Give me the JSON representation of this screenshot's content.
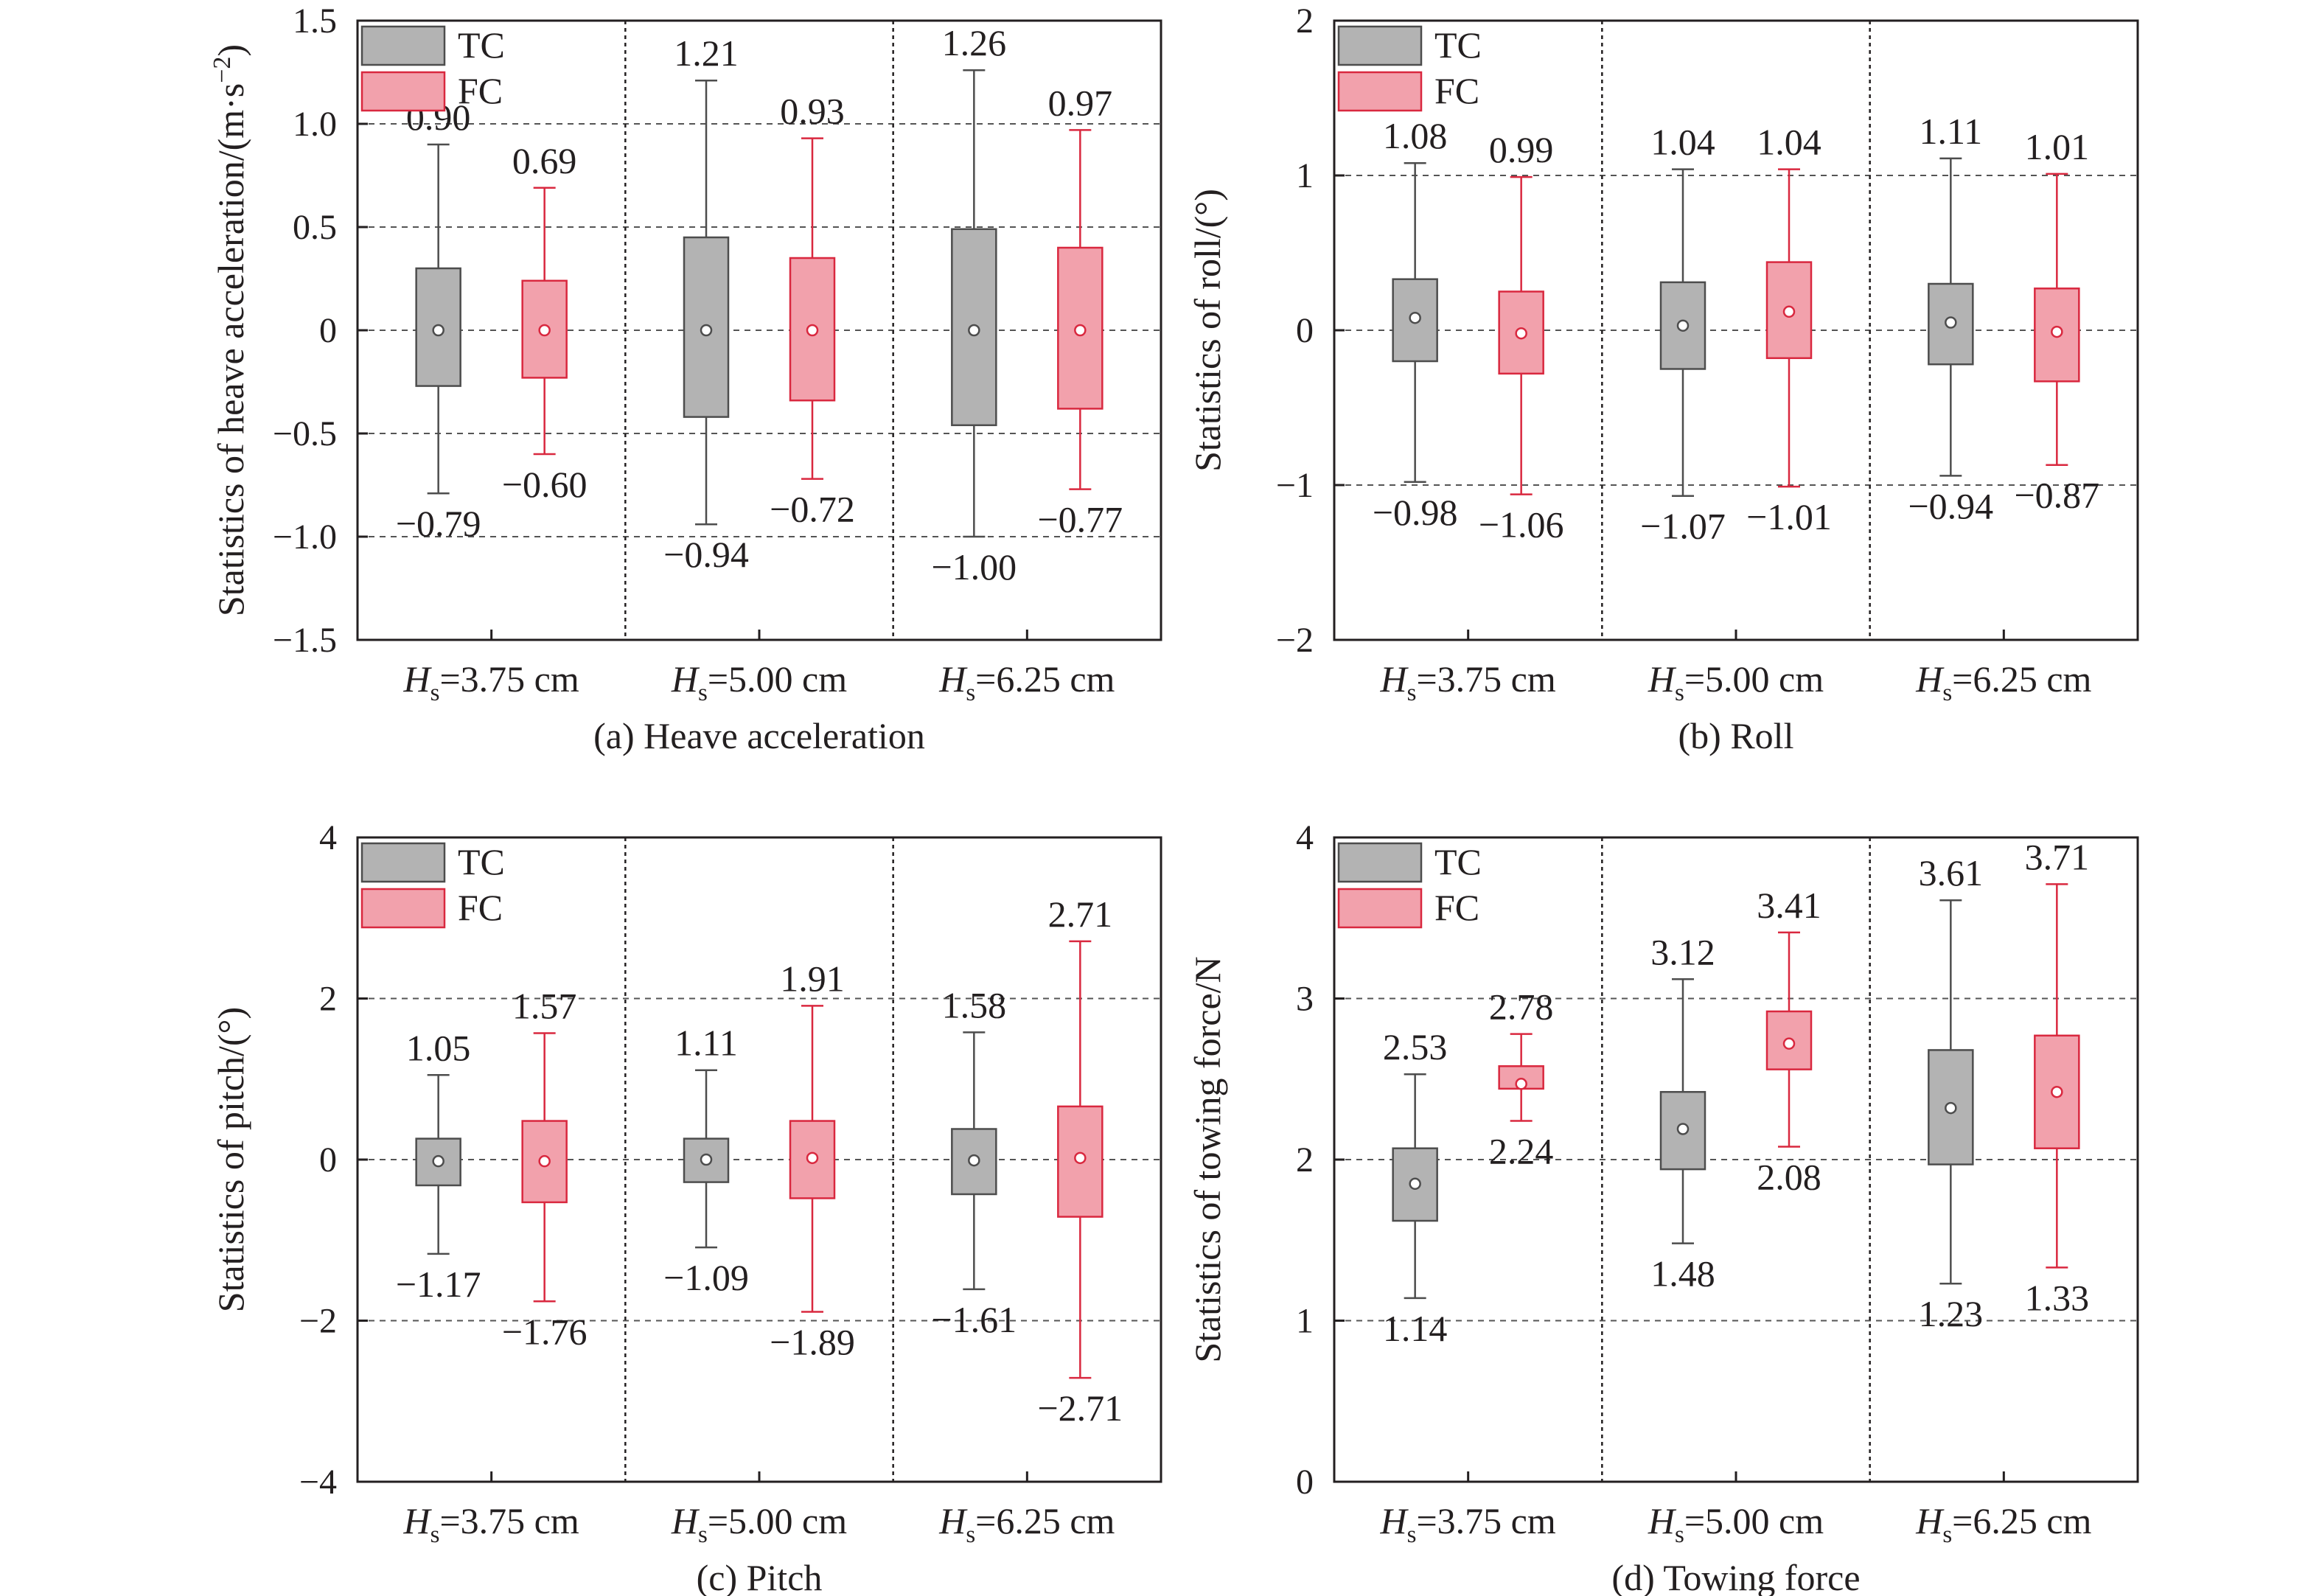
{
  "colors": {
    "tc_fill": "#b3b3b3",
    "tc_stroke": "#4d4d4d",
    "fc_fill": "#f2a1ac",
    "fc_stroke": "#d9283f",
    "axis": "#231f20",
    "grid": "#555555"
  },
  "legend": {
    "tc": "TC",
    "fc": "FC"
  },
  "hs_prefix": "H",
  "hs_sub": "s",
  "chart_data": [
    {
      "type": "box",
      "caption": "(a) Heave acceleration",
      "ylabel_main": "Statistics of heave acceleration/(m·s",
      "ylabel_sup": "−2",
      "ylabel_end": ")",
      "ylim": [
        -1.5,
        1.5
      ],
      "yticks": [
        -1.5,
        -1.0,
        -0.5,
        0,
        0.5,
        1.0,
        1.5
      ],
      "ytick_labels": [
        "−1.5",
        "−1.0",
        "−0.5",
        "0",
        "0.5",
        "1.0",
        "1.5"
      ],
      "grid_y": [
        -1.0,
        -0.5,
        0,
        0.5,
        1.0
      ],
      "categories": [
        "=3.75 cm",
        "=5.00 cm",
        "=6.25 cm"
      ],
      "series": [
        {
          "name": "TC",
          "boxes": [
            {
              "min": -0.79,
              "q1": -0.27,
              "median": 0,
              "q3": 0.3,
              "max": 0.9,
              "max_label": "0.90",
              "min_label": "−0.79"
            },
            {
              "min": -0.94,
              "q1": -0.42,
              "median": 0,
              "q3": 0.45,
              "max": 1.21,
              "max_label": "1.21",
              "min_label": "−0.94"
            },
            {
              "min": -1.0,
              "q1": -0.46,
              "median": 0,
              "q3": 0.49,
              "max": 1.26,
              "max_label": "1.26",
              "min_label": "−1.00"
            }
          ]
        },
        {
          "name": "FC",
          "boxes": [
            {
              "min": -0.6,
              "q1": -0.23,
              "median": 0,
              "q3": 0.24,
              "max": 0.69,
              "max_label": "0.69",
              "min_label": "−0.60"
            },
            {
              "min": -0.72,
              "q1": -0.34,
              "median": 0,
              "q3": 0.35,
              "max": 0.93,
              "max_label": "0.93",
              "min_label": "−0.72"
            },
            {
              "min": -0.77,
              "q1": -0.38,
              "median": 0,
              "q3": 0.4,
              "max": 0.97,
              "max_label": "0.97",
              "min_label": "−0.77"
            }
          ]
        }
      ]
    },
    {
      "type": "box",
      "caption": "(b) Roll",
      "ylabel_main": "Statistics of roll/(°)",
      "ylim": [
        -2,
        2
      ],
      "yticks": [
        -2,
        -1,
        0,
        1,
        2
      ],
      "ytick_labels": [
        "−2",
        "−1",
        "0",
        "1",
        "2"
      ],
      "grid_y": [
        -1,
        0,
        1
      ],
      "categories": [
        "=3.75 cm",
        "=5.00 cm",
        "=6.25 cm"
      ],
      "series": [
        {
          "name": "TC",
          "boxes": [
            {
              "min": -0.98,
              "q1": -0.2,
              "median": 0.08,
              "q3": 0.33,
              "max": 1.08,
              "max_label": "1.08",
              "min_label": "−0.98"
            },
            {
              "min": -1.07,
              "q1": -0.25,
              "median": 0.03,
              "q3": 0.31,
              "max": 1.04,
              "max_label": "1.04",
              "min_label": "−1.07"
            },
            {
              "min": -0.94,
              "q1": -0.22,
              "median": 0.05,
              "q3": 0.3,
              "max": 1.11,
              "max_label": "1.11",
              "min_label": "−0.94"
            }
          ]
        },
        {
          "name": "FC",
          "boxes": [
            {
              "min": -1.06,
              "q1": -0.28,
              "median": -0.02,
              "q3": 0.25,
              "max": 0.99,
              "max_label": "0.99",
              "min_label": "−1.06"
            },
            {
              "min": -1.01,
              "q1": -0.18,
              "median": 0.12,
              "q3": 0.44,
              "max": 1.04,
              "max_label": "1.04",
              "min_label": "−1.01"
            },
            {
              "min": -0.87,
              "q1": -0.33,
              "median": -0.01,
              "q3": 0.27,
              "max": 1.01,
              "max_label": "1.01",
              "min_label": "−0.87"
            }
          ]
        }
      ]
    },
    {
      "type": "box",
      "caption": "(c) Pitch",
      "ylabel_main": "Statistics of pitch/(°)",
      "ylim": [
        -4,
        4
      ],
      "yticks": [
        -4,
        -2,
        0,
        2,
        4
      ],
      "ytick_labels": [
        "−4",
        "−2",
        "0",
        "2",
        "4"
      ],
      "grid_y": [
        -2,
        0,
        2
      ],
      "categories": [
        "=3.75 cm",
        "=5.00 cm",
        "=6.25 cm"
      ],
      "series": [
        {
          "name": "TC",
          "boxes": [
            {
              "min": -1.17,
              "q1": -0.32,
              "median": -0.02,
              "q3": 0.26,
              "max": 1.05,
              "max_label": "1.05",
              "min_label": "−1.17"
            },
            {
              "min": -1.09,
              "q1": -0.28,
              "median": 0.0,
              "q3": 0.26,
              "max": 1.11,
              "max_label": "1.11",
              "min_label": "−1.09"
            },
            {
              "min": -1.61,
              "q1": -0.43,
              "median": -0.01,
              "q3": 0.38,
              "max": 1.58,
              "max_label": "1.58",
              "min_label": "−1.61"
            }
          ]
        },
        {
          "name": "FC",
          "boxes": [
            {
              "min": -1.76,
              "q1": -0.53,
              "median": -0.02,
              "q3": 0.48,
              "max": 1.57,
              "max_label": "1.57",
              "min_label": "−1.76"
            },
            {
              "min": -1.89,
              "q1": -0.48,
              "median": 0.02,
              "q3": 0.48,
              "max": 1.91,
              "max_label": "1.91",
              "min_label": "−1.89"
            },
            {
              "min": -2.71,
              "q1": -0.71,
              "median": 0.02,
              "q3": 0.66,
              "max": 2.71,
              "max_label": "2.71",
              "min_label": "−2.71"
            }
          ]
        }
      ]
    },
    {
      "type": "box",
      "caption": "(d) Towing force",
      "ylabel_main": "Statistics of towing force/N",
      "ylim": [
        0,
        4
      ],
      "yticks": [
        0,
        1,
        2,
        3,
        4
      ],
      "ytick_labels": [
        "0",
        "1",
        "2",
        "3",
        "4"
      ],
      "grid_y": [
        1,
        2,
        3
      ],
      "categories": [
        "=3.75 cm",
        "=5.00 cm",
        "=6.25 cm"
      ],
      "series": [
        {
          "name": "TC",
          "boxes": [
            {
              "min": 1.14,
              "q1": 1.62,
              "median": 1.85,
              "q3": 2.07,
              "max": 2.53,
              "max_label": "2.53",
              "min_label": "1.14"
            },
            {
              "min": 1.48,
              "q1": 1.94,
              "median": 2.19,
              "q3": 2.42,
              "max": 3.12,
              "max_label": "3.12",
              "min_label": "1.48"
            },
            {
              "min": 1.23,
              "q1": 1.97,
              "median": 2.32,
              "q3": 2.68,
              "max": 3.61,
              "max_label": "3.61",
              "min_label": "1.23"
            }
          ]
        },
        {
          "name": "FC",
          "boxes": [
            {
              "min": 2.24,
              "q1": 2.44,
              "median": 2.47,
              "q3": 2.58,
              "max": 2.78,
              "max_label": "2.78",
              "min_label": "2.24"
            },
            {
              "min": 2.08,
              "q1": 2.56,
              "median": 2.72,
              "q3": 2.92,
              "max": 3.41,
              "max_label": "3.41",
              "min_label": "2.08"
            },
            {
              "min": 1.33,
              "q1": 2.07,
              "median": 2.42,
              "q3": 2.77,
              "max": 3.71,
              "max_label": "3.71",
              "min_label": "1.33"
            }
          ]
        }
      ]
    }
  ]
}
